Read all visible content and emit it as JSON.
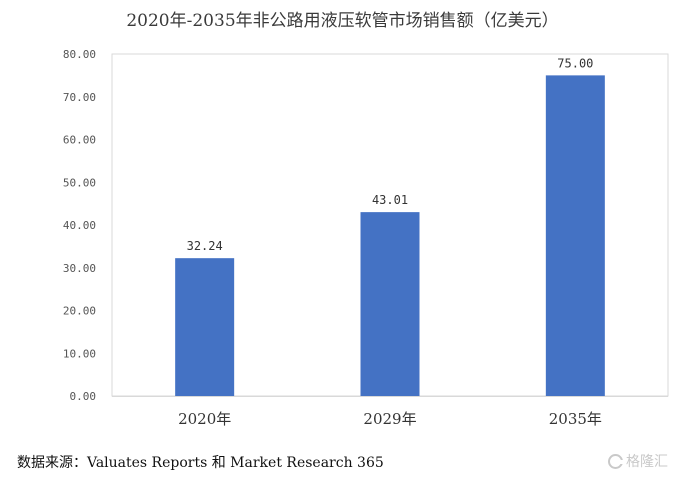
{
  "chart_data": {
    "type": "bar",
    "title": "2020年-2035年非公路用液压软管市场销售额（亿美元）",
    "categories": [
      "2020年",
      "2029年",
      "2035年"
    ],
    "values": [
      32.24,
      43.01,
      75.0
    ],
    "value_labels": [
      "32.24",
      "43.01",
      "75.00"
    ],
    "ylim": [
      0,
      80
    ],
    "yticks": [
      "0.00",
      "10.00",
      "20.00",
      "30.00",
      "40.00",
      "50.00",
      "60.00",
      "70.00",
      "80.00"
    ],
    "xlabel": "",
    "ylabel": "",
    "grid": false,
    "bar_color": "#4472C4"
  },
  "source": "数据来源：Valuates Reports 和 Market Research 365",
  "watermark": {
    "icon": "logo-g-icon",
    "text": "格隆汇"
  }
}
